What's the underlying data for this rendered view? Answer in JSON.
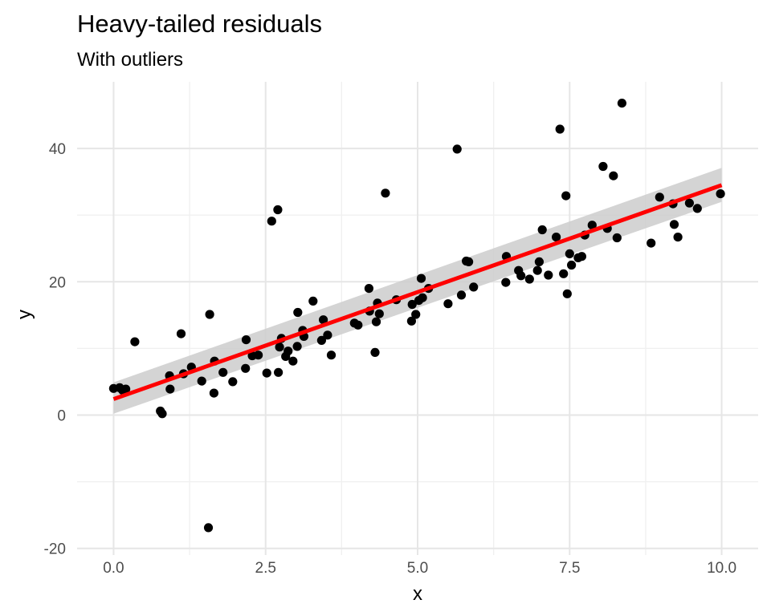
{
  "chart_data": {
    "type": "scatter",
    "title": "Heavy-tailed residuals",
    "subtitle": "With outliers",
    "xlabel": "x",
    "ylabel": "y",
    "xlim": [
      -0.6,
      10.6
    ],
    "ylim": [
      -21,
      50
    ],
    "x_ticks": [
      0,
      2.5,
      5,
      7.5,
      10
    ],
    "x_tick_labels": [
      "0.0",
      "2.5",
      "5.0",
      "7.5",
      "10.0"
    ],
    "y_ticks": [
      -20,
      0,
      20,
      40
    ],
    "y_tick_labels": [
      "-20",
      "0",
      "20",
      "40"
    ],
    "grid": true,
    "point_color": "#000000",
    "fit": {
      "method": "linear",
      "color": "#ff0000",
      "band_color": "#cccccc",
      "x": [
        0,
        10
      ],
      "y": [
        2.4,
        34.5
      ],
      "band_lower": [
        0.2,
        32.0
      ],
      "band_upper": [
        4.9,
        37.1
      ]
    },
    "points": [
      [
        0.0,
        4.0
      ],
      [
        0.1,
        4.1
      ],
      [
        0.15,
        3.7
      ],
      [
        0.2,
        3.9
      ],
      [
        0.35,
        11.0
      ],
      [
        0.77,
        0.6
      ],
      [
        0.8,
        0.2
      ],
      [
        0.92,
        5.9
      ],
      [
        0.93,
        3.9
      ],
      [
        1.11,
        12.2
      ],
      [
        1.15,
        6.2
      ],
      [
        1.28,
        7.2
      ],
      [
        1.45,
        5.1
      ],
      [
        1.56,
        -16.9
      ],
      [
        1.58,
        15.1
      ],
      [
        1.65,
        3.3
      ],
      [
        1.66,
        8.1
      ],
      [
        1.8,
        6.4
      ],
      [
        1.96,
        5.0
      ],
      [
        2.17,
        7.0
      ],
      [
        2.18,
        11.3
      ],
      [
        2.28,
        8.9
      ],
      [
        2.38,
        9.0
      ],
      [
        2.52,
        6.3
      ],
      [
        2.6,
        29.1
      ],
      [
        2.7,
        30.8
      ],
      [
        2.71,
        6.4
      ],
      [
        2.73,
        10.2
      ],
      [
        2.76,
        11.5
      ],
      [
        2.83,
        8.8
      ],
      [
        2.87,
        9.6
      ],
      [
        2.95,
        8.1
      ],
      [
        3.02,
        10.3
      ],
      [
        3.03,
        15.4
      ],
      [
        3.11,
        12.7
      ],
      [
        3.13,
        11.8
      ],
      [
        3.28,
        17.1
      ],
      [
        3.42,
        11.2
      ],
      [
        3.45,
        14.3
      ],
      [
        3.52,
        12.0
      ],
      [
        3.58,
        9.0
      ],
      [
        3.96,
        13.8
      ],
      [
        4.02,
        13.5
      ],
      [
        4.2,
        19.0
      ],
      [
        4.21,
        15.6
      ],
      [
        4.3,
        9.4
      ],
      [
        4.32,
        14.0
      ],
      [
        4.34,
        16.8
      ],
      [
        4.37,
        15.2
      ],
      [
        4.47,
        33.3
      ],
      [
        4.65,
        17.3
      ],
      [
        4.9,
        14.1
      ],
      [
        4.91,
        16.6
      ],
      [
        4.97,
        15.1
      ],
      [
        5.02,
        17.2
      ],
      [
        5.06,
        20.5
      ],
      [
        5.08,
        17.6
      ],
      [
        5.18,
        19.0
      ],
      [
        5.5,
        16.7
      ],
      [
        5.65,
        39.9
      ],
      [
        5.72,
        18.0
      ],
      [
        5.8,
        23.1
      ],
      [
        5.84,
        23.0
      ],
      [
        5.92,
        19.2
      ],
      [
        6.45,
        19.9
      ],
      [
        6.46,
        23.8
      ],
      [
        6.66,
        21.7
      ],
      [
        6.7,
        20.9
      ],
      [
        6.84,
        20.4
      ],
      [
        6.97,
        21.7
      ],
      [
        7.0,
        23.0
      ],
      [
        7.05,
        27.8
      ],
      [
        7.15,
        21.0
      ],
      [
        7.28,
        26.7
      ],
      [
        7.34,
        42.9
      ],
      [
        7.4,
        21.2
      ],
      [
        7.44,
        32.9
      ],
      [
        7.46,
        18.2
      ],
      [
        7.5,
        24.2
      ],
      [
        7.53,
        22.5
      ],
      [
        7.64,
        23.6
      ],
      [
        7.7,
        23.8
      ],
      [
        7.75,
        27.0
      ],
      [
        7.87,
        28.5
      ],
      [
        8.05,
        37.3
      ],
      [
        8.12,
        28.0
      ],
      [
        8.22,
        35.9
      ],
      [
        8.28,
        26.6
      ],
      [
        8.36,
        46.8
      ],
      [
        8.84,
        25.8
      ],
      [
        8.98,
        32.7
      ],
      [
        9.2,
        31.7
      ],
      [
        9.22,
        28.6
      ],
      [
        9.28,
        26.7
      ],
      [
        9.47,
        31.8
      ],
      [
        9.6,
        31.0
      ],
      [
        9.98,
        33.2
      ]
    ]
  }
}
